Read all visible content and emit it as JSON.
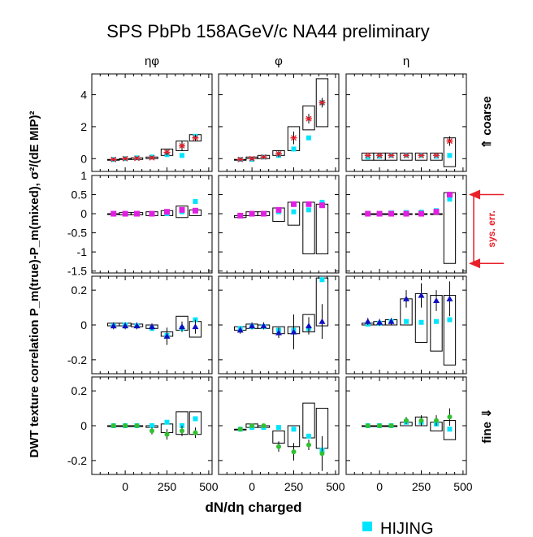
{
  "chart_data": {
    "type": "scatter",
    "title": "SPS PbPb 158AGeV/c NA44 preliminary",
    "xlabel": "dN/dη charged",
    "ylabel": "DWT texture correlation P_m(true)-P_m(mixed), σ²/(dE MIP)²",
    "columns": [
      "ηφ",
      "φ",
      "η"
    ],
    "rows": [
      {
        "label": "⇑ coarse",
        "ylim": [
          -0.8,
          5.3
        ],
        "yticks": [
          0,
          2,
          4
        ],
        "marker": "star",
        "color": "#e8202a"
      },
      {
        "label": "",
        "ylim": [
          -1.55,
          1.0
        ],
        "yticks": [
          -1.5,
          -1,
          -0.5,
          0,
          0.5,
          1
        ],
        "marker": "square",
        "color": "#e020e0"
      },
      {
        "label": "",
        "ylim": [
          -0.28,
          0.28
        ],
        "yticks": [
          -0.2,
          0,
          0.2
        ],
        "marker": "triangle",
        "color": "#1010c0"
      },
      {
        "label": "fine ⇓",
        "ylim": [
          -0.28,
          0.28
        ],
        "yticks": [
          -0.2,
          0,
          0.2
        ],
        "marker": "circle",
        "color": "#30c030"
      }
    ],
    "xlim": [
      -200,
      520
    ],
    "xticks": [
      0,
      250,
      500
    ],
    "annotation": {
      "text": "sys. err.",
      "color": "#e8202a"
    },
    "legend": {
      "label": "HIJING",
      "color": "#00e5ff",
      "position": "bottom-right"
    },
    "x": [
      -70,
      0,
      70,
      160,
      250,
      340,
      420
    ],
    "panels": [
      [
        {
          "data": [
            -0.05,
            0.0,
            0.02,
            0.05,
            0.4,
            0.8,
            1.3
          ],
          "err": [
            0.1,
            0.1,
            0.1,
            0.1,
            0.2,
            0.3,
            0.2
          ],
          "sys_low": [
            -0.05,
            -0.05,
            -0.05,
            0.0,
            0.2,
            0.5,
            1.1
          ],
          "sys_high": [
            -0.05,
            0.0,
            0.05,
            0.1,
            0.6,
            1.1,
            1.5
          ],
          "hijing": [
            -0.05,
            0.0,
            0.05,
            0.1,
            0.25,
            0.2,
            1.4
          ]
        },
        {
          "data": [
            -0.05,
            0.0,
            0.1,
            0.3,
            1.3,
            2.5,
            3.5
          ],
          "err": [
            0.1,
            0.1,
            0.1,
            0.2,
            0.4,
            0.3,
            0.3
          ],
          "sys_low": [
            -0.05,
            0.0,
            0.0,
            0.2,
            0.5,
            1.8,
            2.0
          ],
          "sys_high": [
            -0.05,
            0.1,
            0.2,
            0.5,
            2.0,
            3.3,
            5.0
          ],
          "hijing": [
            -0.05,
            -0.05,
            0.1,
            0.2,
            0.6,
            1.3,
            3.5
          ]
        },
        {
          "data": [
            0.2,
            0.2,
            0.2,
            0.2,
            0.2,
            0.2,
            1.1
          ],
          "err": [
            0.05,
            0.05,
            0.05,
            0.05,
            0.05,
            0.05,
            0.3
          ],
          "sys_low": [
            -0.1,
            -0.1,
            -0.1,
            -0.1,
            -0.1,
            -0.1,
            -0.5
          ],
          "sys_high": [
            0.35,
            0.35,
            0.35,
            0.35,
            0.35,
            0.35,
            1.3
          ],
          "hijing": [
            0.1,
            0.15,
            0.2,
            0.2,
            0.2,
            0.15,
            0.2
          ]
        }
      ],
      [
        {
          "data": [
            0.0,
            0.0,
            0.0,
            0.0,
            0.05,
            0.1,
            0.08
          ],
          "err": [
            0.03,
            0.03,
            0.03,
            0.03,
            0.05,
            0.05,
            0.05
          ],
          "sys_low": [
            0.0,
            -0.03,
            -0.03,
            -0.05,
            -0.05,
            -0.1,
            -0.05
          ],
          "sys_high": [
            0.0,
            0.03,
            0.03,
            0.05,
            0.08,
            0.2,
            0.1
          ],
          "hijing": [
            0.0,
            0.0,
            0.0,
            0.0,
            0.0,
            0.05,
            0.32
          ]
        },
        {
          "data": [
            -0.05,
            0.0,
            0.0,
            0.1,
            0.25,
            0.25,
            0.22
          ],
          "err": [
            0.03,
            0.03,
            0.03,
            0.05,
            0.05,
            0.05,
            0.05
          ],
          "sys_low": [
            -0.1,
            -0.05,
            -0.05,
            -0.2,
            -0.3,
            -1.05,
            -1.05
          ],
          "sys_high": [
            -0.05,
            0.05,
            0.05,
            0.15,
            0.3,
            0.3,
            0.25
          ],
          "hijing": [
            -0.05,
            0.0,
            0.0,
            0.05,
            0.05,
            0.1,
            0.3
          ]
        },
        {
          "data": [
            0.0,
            0.0,
            0.0,
            0.0,
            0.0,
            0.05,
            0.5
          ],
          "err": [
            0.02,
            0.02,
            0.02,
            0.02,
            0.02,
            0.03,
            0.05
          ],
          "sys_low": [
            0.0,
            0.0,
            0.0,
            0.0,
            0.0,
            0.0,
            -1.3
          ],
          "sys_high": [
            0.0,
            0.0,
            0.0,
            0.0,
            0.0,
            0.0,
            0.55
          ],
          "hijing": [
            0.0,
            0.0,
            0.02,
            0.03,
            0.04,
            0.08,
            0.38
          ]
        }
      ],
      [
        {
          "data": [
            -0.005,
            -0.005,
            -0.005,
            -0.01,
            -0.065,
            -0.01,
            -0.01
          ],
          "err": [
            0.02,
            0.02,
            0.02,
            0.02,
            0.05,
            0.03,
            0.04
          ],
          "sys_low": [
            -0.005,
            -0.005,
            -0.01,
            -0.02,
            -0.065,
            -0.03,
            -0.07
          ],
          "sys_high": [
            0.01,
            0.01,
            0.005,
            0.0,
            -0.04,
            0.05,
            0.02
          ],
          "hijing": [
            -0.005,
            0.0,
            -0.005,
            -0.02,
            -0.06,
            -0.02,
            0.03
          ]
        },
        {
          "data": [
            -0.03,
            -0.005,
            -0.005,
            -0.045,
            -0.04,
            -0.005,
            0.02
          ],
          "err": [
            0.02,
            0.02,
            0.02,
            0.03,
            0.1,
            0.05,
            0.1
          ],
          "sys_low": [
            -0.03,
            -0.02,
            -0.02,
            -0.05,
            -0.05,
            -0.04,
            -0.005
          ],
          "sys_high": [
            -0.01,
            0.005,
            0.0,
            -0.01,
            -0.01,
            0.06,
            0.27
          ],
          "hijing": [
            -0.02,
            -0.01,
            -0.01,
            -0.03,
            -0.03,
            -0.02,
            0.26
          ]
        },
        {
          "data": [
            0.02,
            0.015,
            0.02,
            0.15,
            0.17,
            0.14,
            0.15
          ],
          "err": [
            0.02,
            0.02,
            0.02,
            0.05,
            0.07,
            0.06,
            0.1
          ],
          "sys_low": [
            0.0,
            0.0,
            0.0,
            0.0,
            -0.1,
            -0.15,
            -0.23
          ],
          "sys_high": [
            0.01,
            0.02,
            0.03,
            0.15,
            0.18,
            0.17,
            0.17
          ],
          "hijing": [
            0.005,
            0.01,
            0.02,
            0.02,
            0.015,
            0.02,
            0.03
          ]
        }
      ],
      [
        {
          "data": [
            0.0,
            0.0,
            0.0,
            -0.03,
            -0.05,
            -0.03,
            -0.04
          ],
          "err": [
            0.01,
            0.01,
            0.01,
            0.02,
            0.03,
            0.03,
            0.03
          ],
          "sys_low": [
            0.0,
            0.0,
            0.0,
            -0.01,
            -0.04,
            -0.05,
            -0.05
          ],
          "sys_high": [
            0.0,
            0.0,
            0.0,
            0.0,
            0.01,
            0.08,
            0.08
          ],
          "hijing": [
            0.0,
            0.0,
            0.0,
            0.0,
            0.02,
            0.0,
            0.04
          ]
        },
        {
          "data": [
            -0.02,
            0.0,
            0.0,
            -0.12,
            -0.15,
            -0.11,
            -0.16
          ],
          "err": [
            0.01,
            0.01,
            0.01,
            0.03,
            0.05,
            0.03,
            0.1
          ],
          "sys_low": [
            -0.02,
            -0.01,
            -0.01,
            -0.1,
            -0.12,
            -0.07,
            -0.13
          ],
          "sys_high": [
            -0.02,
            0.01,
            0.0,
            -0.03,
            0.0,
            0.13,
            0.1
          ],
          "hijing": [
            -0.02,
            -0.01,
            -0.01,
            -0.01,
            -0.02,
            -0.06,
            -0.14
          ]
        },
        {
          "data": [
            0.0,
            0.0,
            0.0,
            0.03,
            0.03,
            0.03,
            0.05
          ],
          "err": [
            0.01,
            0.01,
            0.01,
            0.02,
            0.03,
            0.03,
            0.05
          ],
          "sys_low": [
            0.0,
            0.0,
            0.0,
            0.0,
            0.0,
            -0.03,
            -0.08
          ],
          "sys_high": [
            0.0,
            0.0,
            0.0,
            0.02,
            0.05,
            0.02,
            0.03
          ],
          "hijing": [
            0.0,
            0.0,
            0.0,
            0.02,
            0.02,
            0.01,
            -0.02
          ]
        }
      ]
    ]
  }
}
